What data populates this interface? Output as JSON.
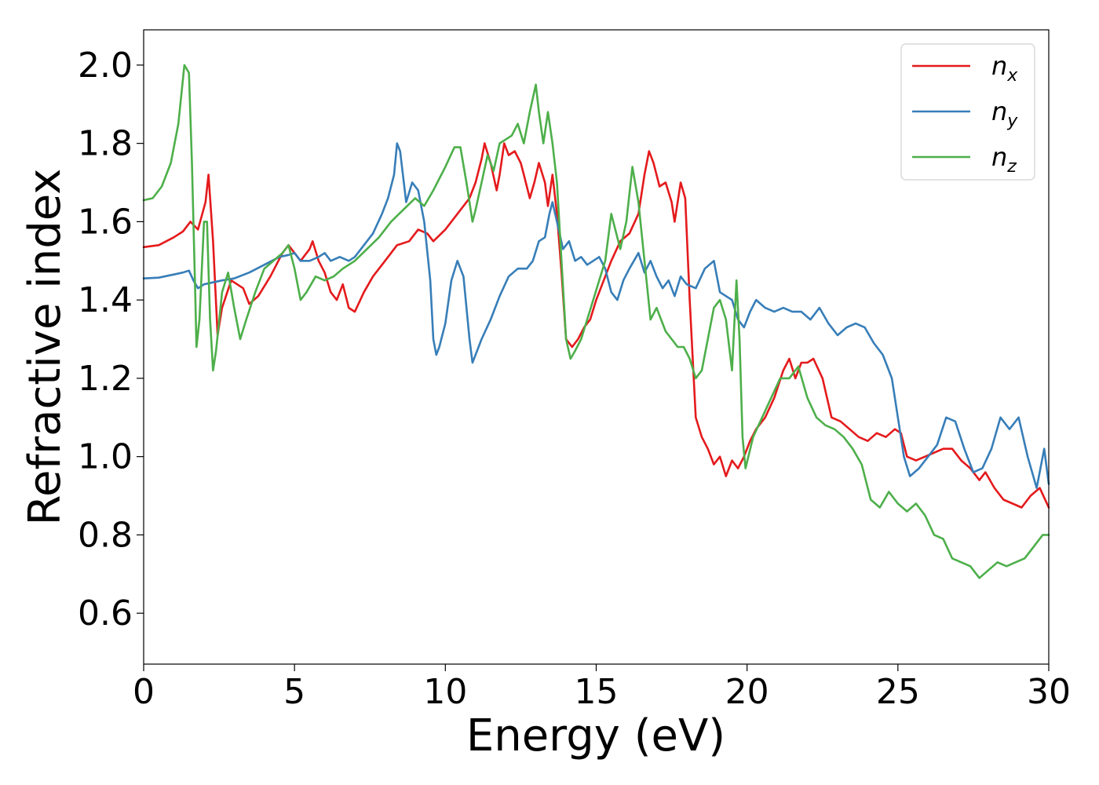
{
  "chart_data": {
    "type": "line",
    "xlabel": "Energy (eV)",
    "ylabel": "Refractive index",
    "xlim": [
      0,
      30
    ],
    "ylim": [
      0.47,
      2.09
    ],
    "xticks": [
      "0",
      "5",
      "10",
      "15",
      "20",
      "25",
      "30"
    ],
    "yticks": [
      "0.6",
      "0.8",
      "1.0",
      "1.2",
      "1.4",
      "1.6",
      "1.8",
      "2.0"
    ],
    "grid": false,
    "legend_position": "top-right",
    "series": [
      {
        "name": "n",
        "subscript": "x",
        "color": "#e41a1c",
        "x": [
          0,
          0.5,
          1.0,
          1.3,
          1.55,
          1.8,
          2.05,
          2.15,
          2.3,
          2.45,
          2.6,
          2.9,
          3.1,
          3.3,
          3.5,
          3.8,
          4.2,
          4.6,
          4.8,
          5.0,
          5.2,
          5.5,
          5.6,
          5.8,
          6.0,
          6.2,
          6.4,
          6.6,
          6.8,
          7.0,
          7.3,
          7.6,
          8.0,
          8.4,
          8.8,
          9.1,
          9.4,
          9.6,
          10.0,
          10.4,
          10.8,
          11.0,
          11.2,
          11.3,
          11.5,
          11.7,
          11.8,
          11.95,
          12.1,
          12.3,
          12.5,
          12.6,
          12.8,
          12.95,
          13.1,
          13.3,
          13.4,
          13.55,
          13.7,
          13.85,
          14.0,
          14.2,
          14.4,
          14.6,
          14.8,
          15.0,
          15.3,
          15.5,
          15.8,
          16.1,
          16.4,
          16.6,
          16.75,
          16.9,
          17.1,
          17.3,
          17.5,
          17.6,
          17.8,
          17.95,
          18.1,
          18.3,
          18.5,
          18.7,
          18.9,
          19.1,
          19.3,
          19.5,
          19.7,
          19.9,
          20.1,
          20.3,
          20.6,
          20.9,
          21.2,
          21.4,
          21.6,
          21.8,
          22.0,
          22.2,
          22.5,
          22.8,
          23.1,
          23.4,
          23.7,
          24.0,
          24.3,
          24.6,
          24.9,
          25.1,
          25.3,
          25.6,
          25.9,
          26.2,
          26.5,
          26.8,
          27.1,
          27.4,
          27.7,
          27.9,
          28.2,
          28.5,
          28.8,
          29.1,
          29.4,
          29.7,
          30.0
        ],
        "y": [
          1.535,
          1.54,
          1.56,
          1.575,
          1.6,
          1.58,
          1.65,
          1.72,
          1.55,
          1.31,
          1.38,
          1.45,
          1.44,
          1.43,
          1.39,
          1.41,
          1.46,
          1.52,
          1.54,
          1.52,
          1.5,
          1.53,
          1.55,
          1.5,
          1.47,
          1.42,
          1.4,
          1.44,
          1.38,
          1.37,
          1.42,
          1.46,
          1.5,
          1.54,
          1.55,
          1.58,
          1.57,
          1.55,
          1.58,
          1.62,
          1.66,
          1.7,
          1.76,
          1.8,
          1.75,
          1.68,
          1.72,
          1.8,
          1.77,
          1.78,
          1.75,
          1.72,
          1.66,
          1.7,
          1.75,
          1.7,
          1.64,
          1.72,
          1.62,
          1.47,
          1.3,
          1.28,
          1.3,
          1.33,
          1.35,
          1.4,
          1.46,
          1.5,
          1.55,
          1.57,
          1.62,
          1.72,
          1.78,
          1.75,
          1.69,
          1.7,
          1.65,
          1.6,
          1.7,
          1.66,
          1.4,
          1.1,
          1.05,
          1.02,
          0.98,
          1.0,
          0.95,
          0.99,
          0.97,
          1.0,
          1.04,
          1.07,
          1.1,
          1.15,
          1.22,
          1.25,
          1.2,
          1.24,
          1.24,
          1.25,
          1.2,
          1.1,
          1.09,
          1.07,
          1.05,
          1.04,
          1.06,
          1.05,
          1.07,
          1.06,
          1.0,
          0.99,
          1.0,
          1.01,
          1.02,
          1.02,
          0.99,
          0.97,
          0.94,
          0.96,
          0.92,
          0.89,
          0.88,
          0.87,
          0.9,
          0.92,
          0.87
        ]
      },
      {
        "name": "n",
        "subscript": "y",
        "color": "#377eb8",
        "x": [
          0,
          0.5,
          1.0,
          1.3,
          1.5,
          1.65,
          1.8,
          2.0,
          2.3,
          2.6,
          3.0,
          3.5,
          4.0,
          4.5,
          4.8,
          5.0,
          5.2,
          5.5,
          5.8,
          6.0,
          6.2,
          6.5,
          6.8,
          7.0,
          7.3,
          7.6,
          7.9,
          8.1,
          8.3,
          8.4,
          8.5,
          8.7,
          8.9,
          9.1,
          9.3,
          9.5,
          9.6,
          9.7,
          9.8,
          10.0,
          10.2,
          10.4,
          10.6,
          10.8,
          10.9,
          11.0,
          11.2,
          11.5,
          11.8,
          12.1,
          12.4,
          12.7,
          12.9,
          13.1,
          13.3,
          13.45,
          13.55,
          13.7,
          13.9,
          14.1,
          14.3,
          14.5,
          14.7,
          14.9,
          15.1,
          15.3,
          15.5,
          15.7,
          15.9,
          16.1,
          16.4,
          16.6,
          16.8,
          17.0,
          17.2,
          17.4,
          17.6,
          17.8,
          18.0,
          18.3,
          18.6,
          18.9,
          19.1,
          19.3,
          19.5,
          19.7,
          19.9,
          20.1,
          20.3,
          20.6,
          20.9,
          21.2,
          21.5,
          21.8,
          22.1,
          22.4,
          22.7,
          23.0,
          23.3,
          23.6,
          23.9,
          24.2,
          24.5,
          24.8,
          25.0,
          25.2,
          25.4,
          25.7,
          26.0,
          26.3,
          26.6,
          26.9,
          27.2,
          27.5,
          27.8,
          28.1,
          28.4,
          28.7,
          29.0,
          29.3,
          29.6,
          29.85,
          30.0
        ],
        "y": [
          1.455,
          1.457,
          1.465,
          1.47,
          1.475,
          1.45,
          1.43,
          1.44,
          1.445,
          1.45,
          1.455,
          1.47,
          1.49,
          1.51,
          1.515,
          1.52,
          1.5,
          1.5,
          1.51,
          1.52,
          1.5,
          1.51,
          1.5,
          1.51,
          1.54,
          1.57,
          1.62,
          1.66,
          1.72,
          1.8,
          1.78,
          1.65,
          1.7,
          1.68,
          1.6,
          1.45,
          1.3,
          1.26,
          1.28,
          1.34,
          1.45,
          1.5,
          1.46,
          1.3,
          1.24,
          1.26,
          1.3,
          1.35,
          1.41,
          1.46,
          1.48,
          1.48,
          1.5,
          1.55,
          1.56,
          1.62,
          1.65,
          1.6,
          1.53,
          1.55,
          1.5,
          1.51,
          1.49,
          1.5,
          1.51,
          1.48,
          1.42,
          1.4,
          1.45,
          1.48,
          1.52,
          1.47,
          1.5,
          1.46,
          1.43,
          1.45,
          1.41,
          1.46,
          1.44,
          1.43,
          1.48,
          1.5,
          1.42,
          1.41,
          1.4,
          1.35,
          1.33,
          1.37,
          1.4,
          1.38,
          1.37,
          1.38,
          1.37,
          1.37,
          1.35,
          1.38,
          1.34,
          1.31,
          1.33,
          1.34,
          1.33,
          1.29,
          1.26,
          1.2,
          1.1,
          1.0,
          0.95,
          0.97,
          1.0,
          1.03,
          1.1,
          1.09,
          1.02,
          0.96,
          0.97,
          1.02,
          1.1,
          1.07,
          1.1,
          1.0,
          0.92,
          1.02,
          0.93
        ]
      },
      {
        "name": "n",
        "subscript": "z",
        "color": "#4daf4a",
        "x": [
          0,
          0.3,
          0.6,
          0.9,
          1.15,
          1.35,
          1.5,
          1.6,
          1.7,
          1.75,
          1.85,
          2.0,
          2.1,
          2.2,
          2.3,
          2.4,
          2.6,
          2.8,
          3.0,
          3.2,
          3.4,
          3.7,
          4.0,
          4.3,
          4.6,
          4.8,
          5.0,
          5.2,
          5.4,
          5.7,
          6.0,
          6.3,
          6.6,
          7.0,
          7.4,
          7.8,
          8.2,
          8.6,
          9.0,
          9.3,
          9.6,
          10.0,
          10.3,
          10.5,
          10.7,
          10.9,
          11.0,
          11.2,
          11.4,
          11.6,
          11.8,
          12.0,
          12.2,
          12.4,
          12.6,
          12.8,
          13.0,
          13.1,
          13.25,
          13.4,
          13.55,
          13.7,
          13.85,
          14.0,
          14.15,
          14.3,
          14.5,
          14.7,
          14.9,
          15.1,
          15.3,
          15.5,
          15.8,
          16.0,
          16.2,
          16.4,
          16.6,
          16.8,
          17.0,
          17.3,
          17.5,
          17.7,
          17.9,
          18.1,
          18.3,
          18.5,
          18.7,
          18.9,
          19.1,
          19.3,
          19.5,
          19.65,
          19.75,
          19.85,
          19.95,
          20.2,
          20.5,
          20.8,
          21.1,
          21.4,
          21.7,
          22.0,
          22.3,
          22.6,
          22.9,
          23.2,
          23.5,
          23.8,
          24.1,
          24.4,
          24.7,
          25.0,
          25.3,
          25.6,
          25.9,
          26.2,
          26.5,
          26.8,
          27.1,
          27.4,
          27.7,
          28.0,
          28.3,
          28.6,
          28.9,
          29.2,
          29.5,
          29.8,
          30.0
        ],
        "y": [
          1.655,
          1.66,
          1.69,
          1.75,
          1.85,
          2.0,
          1.98,
          1.75,
          1.45,
          1.28,
          1.35,
          1.6,
          1.6,
          1.35,
          1.22,
          1.27,
          1.42,
          1.47,
          1.38,
          1.3,
          1.35,
          1.42,
          1.48,
          1.5,
          1.52,
          1.54,
          1.48,
          1.4,
          1.42,
          1.46,
          1.45,
          1.46,
          1.48,
          1.5,
          1.53,
          1.56,
          1.6,
          1.63,
          1.66,
          1.64,
          1.68,
          1.74,
          1.79,
          1.79,
          1.7,
          1.6,
          1.63,
          1.7,
          1.77,
          1.73,
          1.8,
          1.81,
          1.82,
          1.85,
          1.8,
          1.88,
          1.95,
          1.88,
          1.8,
          1.88,
          1.8,
          1.7,
          1.5,
          1.3,
          1.25,
          1.27,
          1.3,
          1.35,
          1.4,
          1.45,
          1.5,
          1.62,
          1.53,
          1.6,
          1.74,
          1.65,
          1.5,
          1.35,
          1.38,
          1.32,
          1.3,
          1.28,
          1.28,
          1.25,
          1.2,
          1.22,
          1.3,
          1.38,
          1.4,
          1.35,
          1.22,
          1.45,
          1.3,
          1.05,
          0.97,
          1.05,
          1.1,
          1.15,
          1.2,
          1.2,
          1.23,
          1.15,
          1.1,
          1.08,
          1.07,
          1.05,
          1.02,
          0.98,
          0.89,
          0.87,
          0.91,
          0.88,
          0.86,
          0.88,
          0.85,
          0.8,
          0.79,
          0.74,
          0.73,
          0.72,
          0.69,
          0.71,
          0.73,
          0.72,
          0.73,
          0.74,
          0.77,
          0.8,
          0.8
        ]
      }
    ]
  }
}
